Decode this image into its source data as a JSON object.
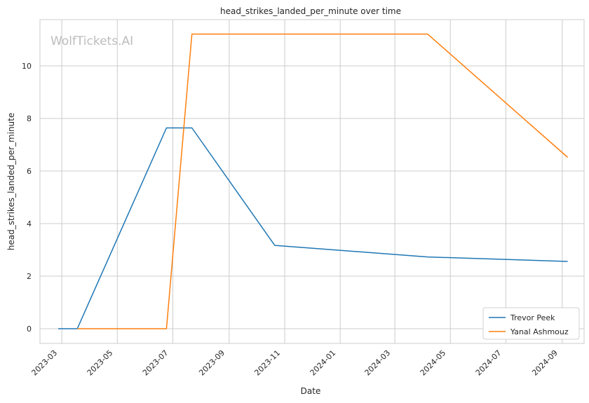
{
  "chart_data": {
    "type": "line",
    "title": "head_strikes_landed_per_minute over time",
    "xlabel": "Date",
    "ylabel": "head_strikes_landed_per_minute",
    "watermark": "WolfTickets.AI",
    "x_ticks": [
      "2023-03-01",
      "2023-05-01",
      "2023-07-01",
      "2023-09-01",
      "2023-11-01",
      "2024-01-01",
      "2024-03-01",
      "2024-05-01",
      "2024-07-01",
      "2024-09-01"
    ],
    "x_tick_labels": [
      "2023-03",
      "2023-05",
      "2023-07",
      "2023-09",
      "2023-11",
      "2024-01",
      "2024-03",
      "2024-05",
      "2024-07",
      "2024-09"
    ],
    "xlim": [
      "2023-02-05",
      "2024-09-25"
    ],
    "y_ticks": [
      0,
      2,
      4,
      6,
      8,
      10
    ],
    "ylim": [
      -0.56,
      11.76
    ],
    "grid": true,
    "legend_position": "lower-right",
    "series": [
      {
        "name": "Trevor Peek",
        "color": "#1f77b4",
        "x": [
          "2023-02-25",
          "2023-03-18",
          "2023-06-24",
          "2023-07-22",
          "2023-10-21",
          "2024-04-06",
          "2024-09-07"
        ],
        "y": [
          0,
          0,
          7.64,
          7.64,
          3.17,
          2.73,
          2.56
        ]
      },
      {
        "name": "Yanal Ashmouz",
        "color": "#ff7f0e",
        "x": [
          "2023-03-18",
          "2023-06-24",
          "2023-07-22",
          "2024-04-06",
          "2024-09-07"
        ],
        "y": [
          0,
          0,
          11.21,
          11.21,
          6.52
        ]
      }
    ]
  }
}
